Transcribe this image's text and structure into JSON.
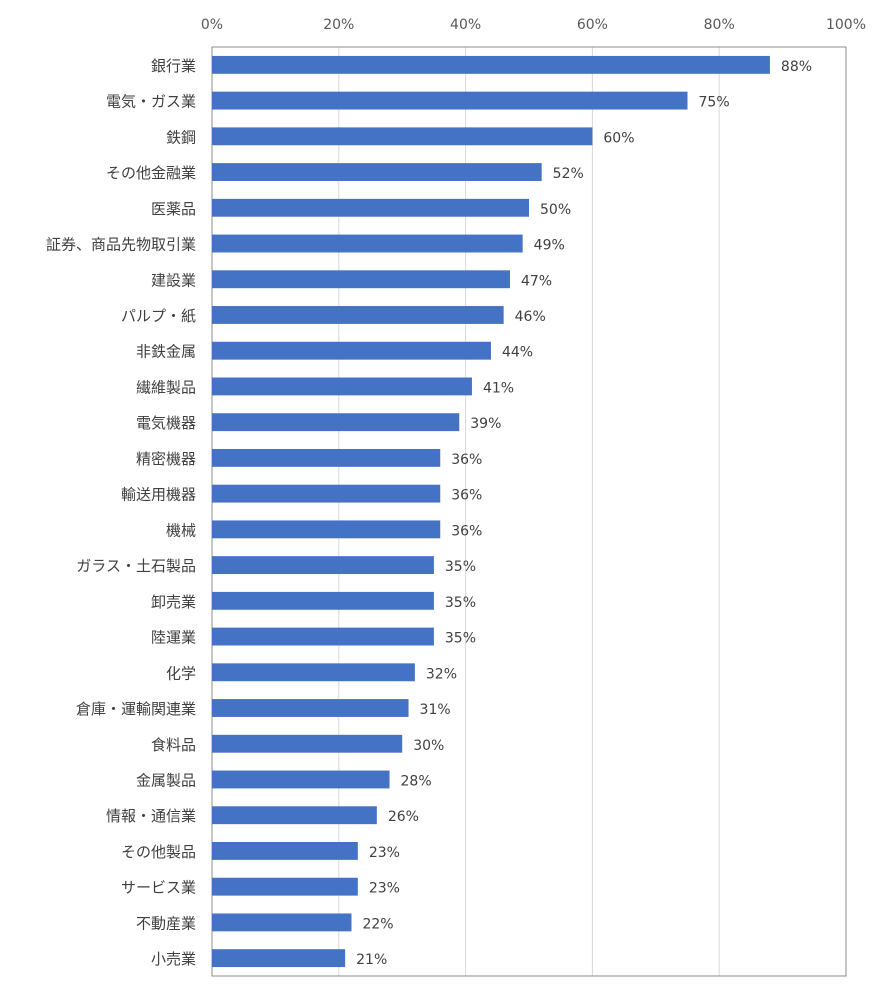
{
  "chart_data": {
    "type": "bar",
    "orientation": "horizontal",
    "title": "",
    "xlabel": "",
    "ylabel": "",
    "xlim": [
      0,
      100
    ],
    "x_ticks": [
      "0%",
      "20%",
      "40%",
      "60%",
      "80%",
      "100%"
    ],
    "x_axis_position": "top",
    "grid": true,
    "legend": "none",
    "bar_color": "#4472C4",
    "categories": [
      "銀行業",
      "電気・ガス業",
      "鉄鋼",
      "その他金融業",
      "医薬品",
      "証券、商品先物取引業",
      "建設業",
      "パルプ・紙",
      "非鉄金属",
      "繊維製品",
      "電気機器",
      "精密機器",
      "輸送用機器",
      "機械",
      "ガラス・土石製品",
      "卸売業",
      "陸運業",
      "化学",
      "倉庫・運輸関連業",
      "食料品",
      "金属製品",
      "情報・通信業",
      "その他製品",
      "サービス業",
      "不動産業",
      "小売業"
    ],
    "values": [
      88,
      75,
      60,
      52,
      50,
      49,
      47,
      46,
      44,
      41,
      39,
      36,
      36,
      36,
      35,
      35,
      35,
      32,
      31,
      30,
      28,
      26,
      23,
      23,
      22,
      21
    ],
    "value_labels": [
      "88%",
      "75%",
      "60%",
      "52%",
      "50%",
      "49%",
      "47%",
      "46%",
      "44%",
      "41%",
      "39%",
      "36%",
      "36%",
      "36%",
      "35%",
      "35%",
      "35%",
      "32%",
      "31%",
      "30%",
      "28%",
      "26%",
      "23%",
      "23%",
      "22%",
      "21%"
    ]
  }
}
